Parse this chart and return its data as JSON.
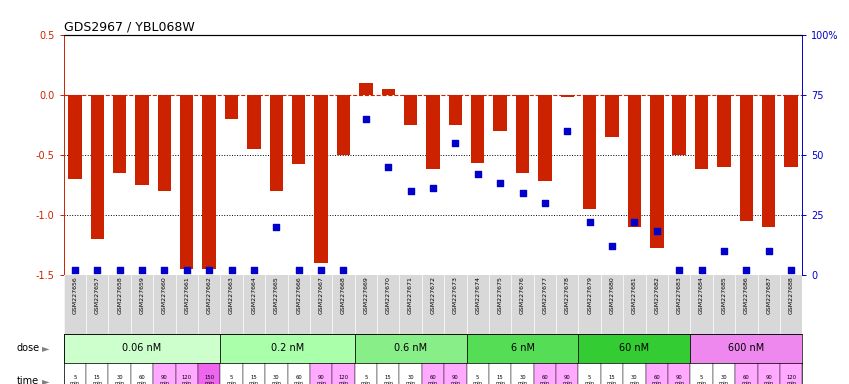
{
  "title": "GDS2967 / YBL068W",
  "samples": [
    "GSM227656",
    "GSM227657",
    "GSM227658",
    "GSM227659",
    "GSM227660",
    "GSM227661",
    "GSM227662",
    "GSM227663",
    "GSM227664",
    "GSM227665",
    "GSM227666",
    "GSM227667",
    "GSM227668",
    "GSM227669",
    "GSM227670",
    "GSM227671",
    "GSM227672",
    "GSM227673",
    "GSM227674",
    "GSM227675",
    "GSM227676",
    "GSM227677",
    "GSM227678",
    "GSM227679",
    "GSM227680",
    "GSM227681",
    "GSM227682",
    "GSM227683",
    "GSM227684",
    "GSM227685",
    "GSM227686",
    "GSM227687",
    "GSM227688"
  ],
  "log2_ratio": [
    -0.7,
    -1.2,
    -0.65,
    -0.75,
    -0.8,
    -1.45,
    -1.45,
    -0.2,
    -0.45,
    -0.8,
    -0.58,
    -1.4,
    -0.5,
    0.1,
    0.05,
    -0.25,
    -0.62,
    -0.25,
    -0.57,
    -0.3,
    -0.65,
    -0.72,
    -0.02,
    -0.95,
    -0.35,
    -1.1,
    -1.28,
    -0.5,
    -0.62,
    -0.6,
    -1.05,
    -1.1,
    -0.6
  ],
  "percentile_rank": [
    2,
    2,
    2,
    2,
    2,
    2,
    2,
    2,
    2,
    20,
    2,
    2,
    2,
    65,
    45,
    35,
    36,
    55,
    42,
    38,
    34,
    30,
    60,
    22,
    12,
    22,
    18,
    2,
    2,
    10,
    2,
    10,
    2
  ],
  "doses": [
    {
      "label": "0.06 nM",
      "start": 0,
      "end": 7,
      "color": "#ccffcc"
    },
    {
      "label": "0.2 nM",
      "start": 7,
      "end": 13,
      "color": "#aaffaa"
    },
    {
      "label": "0.6 nM",
      "start": 13,
      "end": 18,
      "color": "#88ee88"
    },
    {
      "label": "6 nM",
      "start": 18,
      "end": 23,
      "color": "#55dd55"
    },
    {
      "label": "60 nM",
      "start": 23,
      "end": 28,
      "color": "#33cc33"
    },
    {
      "label": "600 nM",
      "start": 28,
      "end": 33,
      "color": "#ee88ee"
    }
  ],
  "time_labels": [
    "5\nmin",
    "15\nmin",
    "30\nmin",
    "60\nmin",
    "90\nmin",
    "120\nmin",
    "150\nmin",
    "5\nmin",
    "15\nmin",
    "30\nmin",
    "60\nmin",
    "90\nmin",
    "120\nmin",
    "5\nmin",
    "15\nmin",
    "30\nmin",
    "60\nmin",
    "90\nmin",
    "5\nmin",
    "15\nmin",
    "30\nmin",
    "60\nmin",
    "90\nmin",
    "5\nmin",
    "15\nmin",
    "30\nmin",
    "60\nmin",
    "90\nmin",
    "5\nmin",
    "30\nmin",
    "60\nmin",
    "90\nmin",
    "120\nmin"
  ],
  "time_colors": [
    "#ffffff",
    "#ffffff",
    "#ffffff",
    "#ffffff",
    "#ffaaff",
    "#ffaaff",
    "#ee66ee",
    "#ffffff",
    "#ffffff",
    "#ffffff",
    "#ffffff",
    "#ffaaff",
    "#ffaaff",
    "#ffffff",
    "#ffffff",
    "#ffffff",
    "#ffaaff",
    "#ffaaff",
    "#ffffff",
    "#ffffff",
    "#ffffff",
    "#ffaaff",
    "#ffaaff",
    "#ffffff",
    "#ffffff",
    "#ffffff",
    "#ffaaff",
    "#ffaaff",
    "#ffffff",
    "#ffffff",
    "#ffaaff",
    "#ffaaff",
    "#ffaaff"
  ],
  "bar_color": "#cc2200",
  "dot_color": "#0000cc",
  "ylim_left": [
    -1.5,
    0.5
  ],
  "ylim_right": [
    0,
    100
  ],
  "yticks_left": [
    -1.5,
    -1.0,
    -0.5,
    0.0,
    0.5
  ],
  "yticks_right": [
    0,
    25,
    50,
    75,
    100
  ],
  "ytick_labels_right": [
    "0",
    "25",
    "50",
    "75",
    "100%"
  ],
  "label_gray": "#d0d0d0",
  "sample_bg": "#d8d8d8"
}
